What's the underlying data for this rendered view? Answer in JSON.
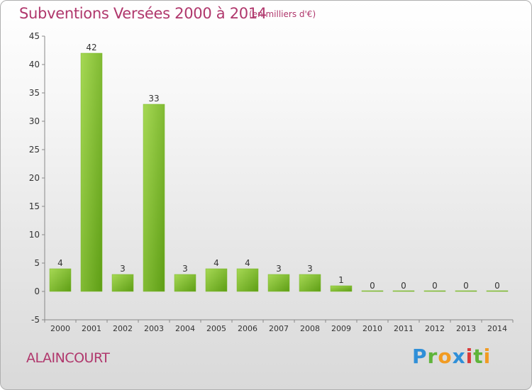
{
  "header": {
    "title": "Subventions Versées 2000 à 2014",
    "subtitle": "(en milliers d'€)"
  },
  "footer": {
    "place": "ALAINCOURT",
    "logo": "Proxiti"
  },
  "colors": {
    "title": "#b0376c",
    "bar_light": "#a6d854",
    "bar_dark": "#5e9e15"
  },
  "chart_data": {
    "type": "bar",
    "title": "Subventions Versées 2000 à 2014",
    "subtitle": "(en milliers d'€)",
    "xlabel": "",
    "ylabel": "",
    "categories": [
      "2000",
      "2001",
      "2002",
      "2003",
      "2004",
      "2005",
      "2006",
      "2007",
      "2008",
      "2009",
      "2010",
      "2011",
      "2012",
      "2013",
      "2014"
    ],
    "values": [
      4,
      42,
      3,
      33,
      3,
      4,
      4,
      3,
      3,
      1,
      0,
      0,
      0,
      0,
      0
    ],
    "ylim": [
      -5,
      45
    ],
    "yticks": [
      -5,
      0,
      5,
      10,
      15,
      20,
      25,
      30,
      35,
      40,
      45
    ],
    "grid": false,
    "legend": "none"
  }
}
